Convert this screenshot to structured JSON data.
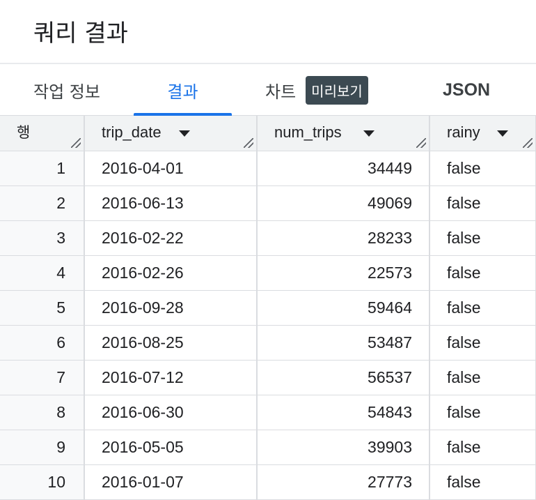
{
  "page": {
    "title": "쿼리 결과"
  },
  "tabs": {
    "job_info": "작업 정보",
    "results": "결과",
    "chart": "차트",
    "chart_badge": "미리보기",
    "json": "JSON"
  },
  "table": {
    "headers": {
      "row": "행",
      "trip_date": "trip_date",
      "num_trips": "num_trips",
      "rainy": "rainy"
    },
    "rows": [
      {
        "row": "1",
        "trip_date": "2016-04-01",
        "num_trips": "34449",
        "rainy": "false"
      },
      {
        "row": "2",
        "trip_date": "2016-06-13",
        "num_trips": "49069",
        "rainy": "false"
      },
      {
        "row": "3",
        "trip_date": "2016-02-22",
        "num_trips": "28233",
        "rainy": "false"
      },
      {
        "row": "4",
        "trip_date": "2016-02-26",
        "num_trips": "22573",
        "rainy": "false"
      },
      {
        "row": "5",
        "trip_date": "2016-09-28",
        "num_trips": "59464",
        "rainy": "false"
      },
      {
        "row": "6",
        "trip_date": "2016-08-25",
        "num_trips": "53487",
        "rainy": "false"
      },
      {
        "row": "7",
        "trip_date": "2016-07-12",
        "num_trips": "56537",
        "rainy": "false"
      },
      {
        "row": "8",
        "trip_date": "2016-06-30",
        "num_trips": "54843",
        "rainy": "false"
      },
      {
        "row": "9",
        "trip_date": "2016-05-05",
        "num_trips": "39903",
        "rainy": "false"
      },
      {
        "row": "10",
        "trip_date": "2016-01-07",
        "num_trips": "27773",
        "rainy": "false"
      }
    ]
  },
  "colors": {
    "accent": "#1a73e8",
    "badge_bg": "#3c4a52",
    "header_bg": "#f1f3f4",
    "border": "#dadce0"
  }
}
